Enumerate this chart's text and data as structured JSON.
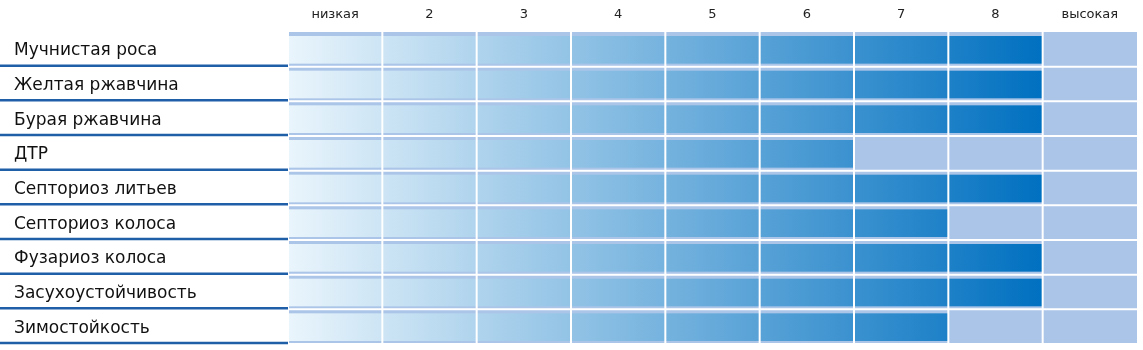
{
  "chart_data": {
    "type": "bar",
    "orientation": "horizontal",
    "categories": [
      "Мучнистая роса",
      "Желтая ржавчина",
      "Бурая ржавчина",
      "ДТР",
      "Септориоз литьев",
      "Септориоз колоса",
      "Фузариоз колоса",
      "Засухоустойчивость",
      "Зимостойкость"
    ],
    "series": [
      {
        "color": "#0070c0",
        "values": [
          8,
          8,
          8,
          6,
          8,
          7,
          8,
          8,
          7
        ]
      }
    ],
    "xlim": [
      0,
      9
    ],
    "xticks": [
      {
        "value": 0.5,
        "label": "низкая"
      },
      {
        "value": 1,
        "label": null
      },
      {
        "value": 1.5,
        "label": "2"
      },
      {
        "value": 2,
        "label": null
      },
      {
        "value": 2.5,
        "label": "3"
      },
      {
        "value": 3,
        "label": null
      },
      {
        "value": 3.5,
        "label": "4"
      },
      {
        "value": 4,
        "label": null
      },
      {
        "value": 4.5,
        "label": "5"
      },
      {
        "value": 5,
        "label": null
      },
      {
        "value": 5.5,
        "label": "6"
      },
      {
        "value": 6,
        "label": null
      },
      {
        "value": 6.5,
        "label": "7"
      },
      {
        "value": 7,
        "label": null
      },
      {
        "value": 7.5,
        "label": "8"
      },
      {
        "value": 8,
        "label": null
      },
      {
        "value": 8.5,
        "label": "высокая"
      }
    ],
    "bands": [
      {
        "axis": "x",
        "from": 0,
        "to": 9,
        "color": "#abc5e8"
      }
    ],
    "grid": "x"
  }
}
